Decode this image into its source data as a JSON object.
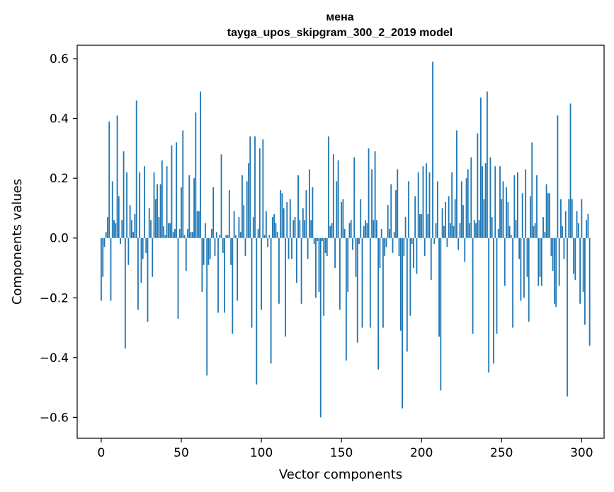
{
  "chart_data": {
    "type": "bar",
    "title": "мена",
    "subtitle": "tayga_upos_skipgram_300_2_2019 model",
    "xlabel": "Vector components",
    "ylabel": "Components values",
    "xlim": [
      -15,
      314
    ],
    "ylim": [
      -0.67,
      0.645
    ],
    "xticks": [
      0,
      50,
      100,
      150,
      200,
      250,
      300
    ],
    "xtick_labels": [
      "0",
      "50",
      "100",
      "150",
      "200",
      "250",
      "300"
    ],
    "yticks": [
      -0.6,
      -0.4,
      -0.2,
      0.0,
      0.2,
      0.4,
      0.6
    ],
    "ytick_labels": [
      "−0.6",
      "−0.4",
      "−0.2",
      "0.0",
      "0.2",
      "0.4",
      "0.6"
    ],
    "grid": false,
    "bar_color": "#1f77b4",
    "values": [
      -0.21,
      -0.13,
      -0.03,
      0.02,
      0.07,
      0.39,
      -0.21,
      0.19,
      0.06,
      0.05,
      0.41,
      0.14,
      -0.02,
      0.06,
      0.29,
      -0.37,
      0.22,
      -0.09,
      0.11,
      0.06,
      0.02,
      0.08,
      0.46,
      -0.24,
      0.22,
      -0.15,
      -0.07,
      0.24,
      -0.05,
      -0.28,
      0.1,
      0.06,
      -0.13,
      0.22,
      0.13,
      0.18,
      0.07,
      0.18,
      0.26,
      0.04,
      0.01,
      0.24,
      0.05,
      0.05,
      0.31,
      0.02,
      0.03,
      0.32,
      -0.27,
      0.03,
      0.17,
      0.36,
      0.01,
      -0.11,
      0.03,
      0.21,
      0.02,
      0.02,
      0.2,
      0.42,
      0.09,
      0.09,
      0.49,
      -0.18,
      -0.09,
      0.05,
      -0.46,
      -0.09,
      -0.07,
      0.03,
      0.17,
      -0.06,
      0.02,
      -0.25,
      0.01,
      0.28,
      -0.05,
      -0.25,
      0.01,
      0.01,
      0.16,
      -0.09,
      -0.32,
      0.09,
      0.01,
      -0.21,
      0.07,
      0.02,
      0.21,
      0.11,
      -0.06,
      0.19,
      0.25,
      0.34,
      -0.3,
      0.07,
      0.34,
      -0.49,
      0.03,
      0.3,
      -0.24,
      0.33,
      0.01,
      0.09,
      -0.03,
      0.01,
      -0.42,
      0.07,
      0.08,
      0.05,
      0.02,
      -0.22,
      0.16,
      0.15,
      0.1,
      -0.33,
      0.12,
      -0.07,
      0.13,
      -0.07,
      0.06,
      0.07,
      -0.15,
      0.21,
      0.06,
      -0.22,
      0.1,
      0.06,
      0.16,
      -0.07,
      0.23,
      0.06,
      0.17,
      -0.02,
      -0.2,
      -0.01,
      -0.18,
      -0.6,
      -0.01,
      -0.26,
      -0.05,
      -0.06,
      0.34,
      0.04,
      0.05,
      0.28,
      -0.1,
      0.19,
      0.26,
      -0.24,
      0.12,
      0.13,
      0.03,
      -0.41,
      -0.18,
      0.05,
      0.06,
      -0.04,
      0.27,
      -0.13,
      -0.35,
      -0.02,
      0.13,
      -0.3,
      0.04,
      0.06,
      0.05,
      0.3,
      -0.3,
      0.23,
      0.06,
      0.29,
      0.06,
      -0.44,
      -0.1,
      0.03,
      -0.3,
      -0.06,
      -0.03,
      0.11,
      0.03,
      0.18,
      -0.05,
      0.02,
      0.16,
      0.23,
      -0.06,
      -0.31,
      -0.57,
      -0.06,
      0.07,
      -0.38,
      0.19,
      -0.26,
      -0.02,
      -0.1,
      0.14,
      -0.12,
      0.22,
      0.08,
      0.08,
      0.24,
      -0.06,
      0.25,
      0.08,
      0.22,
      -0.14,
      0.59,
      -0.02,
      0.05,
      0.19,
      -0.33,
      -0.51,
      0.1,
      0.04,
      0.12,
      -0.03,
      0.14,
      0.05,
      0.22,
      0.04,
      0.13,
      0.36,
      -0.04,
      0.05,
      0.19,
      0.11,
      -0.08,
      0.2,
      0.23,
      0.05,
      0.27,
      -0.32,
      0.06,
      0.05,
      0.35,
      0.06,
      0.47,
      0.24,
      0.13,
      0.25,
      0.49,
      -0.45,
      0.27,
      0.07,
      -0.42,
      0.24,
      -0.32,
      0.03,
      0.24,
      0.13,
      0.19,
      -0.16,
      0.17,
      0.12,
      0.04,
      0.01,
      -0.3,
      0.21,
      0.06,
      0.22,
      -0.07,
      -0.21,
      0.15,
      -0.2,
      0.23,
      -0.13,
      -0.28,
      0.14,
      0.32,
      0.04,
      0.05,
      0.21,
      -0.16,
      -0.13,
      -0.16,
      0.07,
      0.02,
      0.18,
      0.15,
      0.15,
      -0.06,
      -0.11,
      -0.22,
      -0.23,
      0.41,
      -0.16,
      0.13,
      0.04,
      -0.07,
      0.09,
      -0.53,
      0.13,
      0.45,
      0.13,
      -0.12,
      -0.14,
      0.09,
      0.05,
      -0.22,
      0.13,
      -0.18,
      -0.29,
      0.06,
      0.08,
      -0.36
    ]
  }
}
